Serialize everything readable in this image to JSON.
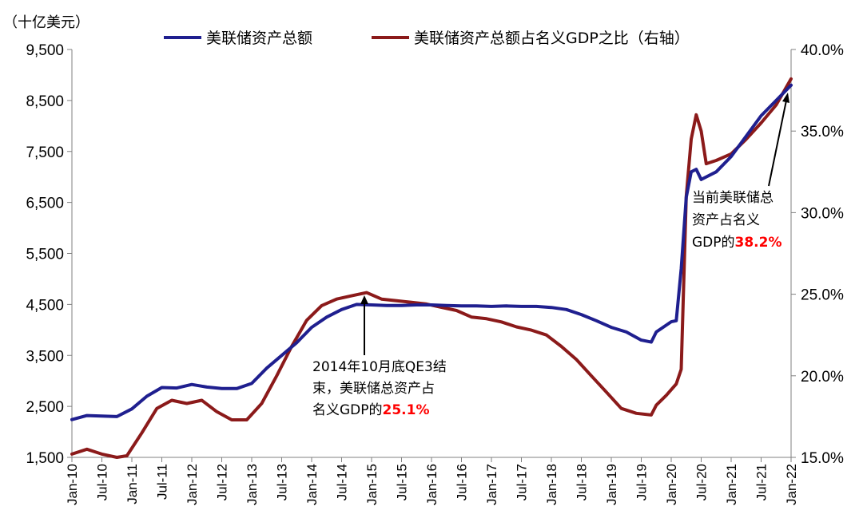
{
  "chart_data": {
    "type": "line",
    "y_unit_label": "（十亿美元）",
    "left_axis": {
      "ticks": [
        "9,500",
        "8,500",
        "7,500",
        "6,500",
        "5,500",
        "4,500",
        "3,500",
        "2,500",
        "1,500"
      ],
      "ylim": [
        1500,
        9500
      ]
    },
    "right_axis": {
      "ticks": [
        "40.0%",
        "35.0%",
        "30.0%",
        "25.0%",
        "20.0%",
        "15.0%"
      ],
      "ylim": [
        15,
        40
      ]
    },
    "x_ticks": [
      "Jan-10",
      "Jul-10",
      "Jan-11",
      "Jul-11",
      "Jan-12",
      "Jul-12",
      "Jan-13",
      "Jul-13",
      "Jan-14",
      "Jul-14",
      "Jan-15",
      "Jul-15",
      "Jan-16",
      "Jul-16",
      "Jan-17",
      "Jul-17",
      "Jan-18",
      "Jul-18",
      "Jan-19",
      "Jul-19",
      "Jan-20",
      "Jul-20",
      "Jan-21",
      "Jul-21",
      "Jan-22"
    ],
    "series": [
      {
        "name": "美联储资产总额",
        "axis": "left",
        "color": "#1f1f8f",
        "x": [
          "2010-01",
          "2010-04",
          "2010-07",
          "2010-10",
          "2011-01",
          "2011-04",
          "2011-07",
          "2011-10",
          "2012-01",
          "2012-04",
          "2012-07",
          "2012-10",
          "2013-01",
          "2013-04",
          "2013-07",
          "2013-10",
          "2014-01",
          "2014-04",
          "2014-07",
          "2014-10",
          "2015-01",
          "2015-04",
          "2015-07",
          "2015-10",
          "2016-01",
          "2016-04",
          "2016-07",
          "2016-10",
          "2017-01",
          "2017-04",
          "2017-07",
          "2017-10",
          "2018-01",
          "2018-04",
          "2018-07",
          "2018-10",
          "2019-01",
          "2019-04",
          "2019-07",
          "2019-09",
          "2019-10",
          "2020-01",
          "2020-02",
          "2020-03",
          "2020-04",
          "2020-05",
          "2020-06",
          "2020-07",
          "2020-10",
          "2021-01",
          "2021-04",
          "2021-07",
          "2021-10",
          "2022-01"
        ],
        "values": [
          2240,
          2320,
          2310,
          2300,
          2450,
          2700,
          2870,
          2860,
          2930,
          2880,
          2850,
          2850,
          2950,
          3250,
          3500,
          3750,
          4050,
          4250,
          4400,
          4500,
          4490,
          4480,
          4480,
          4490,
          4490,
          4480,
          4470,
          4470,
          4460,
          4470,
          4460,
          4460,
          4440,
          4400,
          4300,
          4180,
          4050,
          3960,
          3800,
          3760,
          3960,
          4160,
          4180,
          5200,
          6600,
          7100,
          7150,
          6950,
          7100,
          7400,
          7800,
          8200,
          8500,
          8800
        ]
      },
      {
        "name": "美联储资产总额占名义GDP之比（右轴）",
        "axis": "right",
        "color": "#8b1a1a",
        "x": [
          "2010-01",
          "2010-04",
          "2010-07",
          "2010-10",
          "2010-12",
          "2011-03",
          "2011-06",
          "2011-09",
          "2011-12",
          "2012-03",
          "2012-06",
          "2012-09",
          "2012-12",
          "2013-03",
          "2013-06",
          "2013-09",
          "2013-12",
          "2014-03",
          "2014-06",
          "2014-09",
          "2014-12",
          "2015-03",
          "2015-06",
          "2015-09",
          "2015-12",
          "2016-03",
          "2016-06",
          "2016-09",
          "2016-12",
          "2017-03",
          "2017-06",
          "2017-09",
          "2017-12",
          "2018-03",
          "2018-06",
          "2018-09",
          "2018-12",
          "2019-03",
          "2019-06",
          "2019-09",
          "2019-10",
          "2019-12",
          "2020-02",
          "2020-03",
          "2020-04",
          "2020-05",
          "2020-06",
          "2020-07",
          "2020-08",
          "2020-10",
          "2021-01",
          "2021-04",
          "2021-07",
          "2021-10",
          "2022-01"
        ],
        "values": [
          15.2,
          15.5,
          15.2,
          15.0,
          15.1,
          16.5,
          18.0,
          18.5,
          18.3,
          18.5,
          17.8,
          17.3,
          17.3,
          18.3,
          20.0,
          21.8,
          23.4,
          24.3,
          24.7,
          24.9,
          25.1,
          24.7,
          24.6,
          24.5,
          24.4,
          24.2,
          24.0,
          23.6,
          23.5,
          23.3,
          23.0,
          22.8,
          22.5,
          21.8,
          21.0,
          20.0,
          19.0,
          18.0,
          17.7,
          17.6,
          18.2,
          18.8,
          19.5,
          20.4,
          31.0,
          34.5,
          36.0,
          35.0,
          33.0,
          33.2,
          33.6,
          34.5,
          35.5,
          36.6,
          38.2
        ]
      }
    ],
    "annotations": [
      {
        "lines": [
          "2014年10月底QE3结",
          "束，美联储总资产占",
          "名义GDP的"
        ],
        "highlight": "25.1%"
      },
      {
        "lines": [
          "当前美联储总",
          "资产占名义",
          "GDP的"
        ],
        "highlight": "38.2%"
      }
    ]
  }
}
